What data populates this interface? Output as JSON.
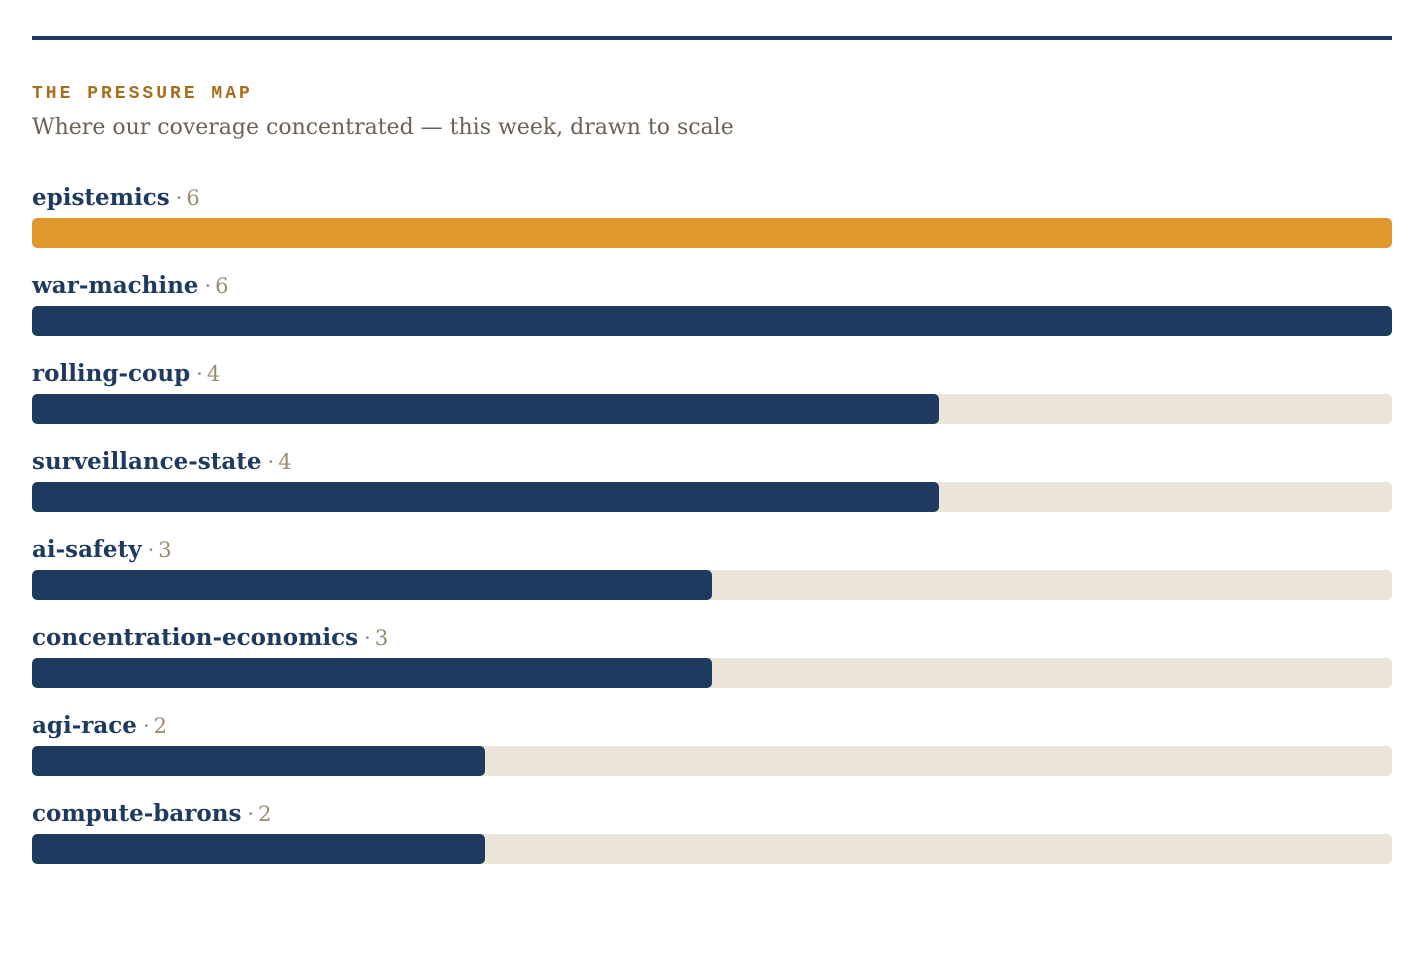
{
  "header": {
    "kicker": "THE PRESSURE MAP",
    "subtitle": "Where our coverage concentrated — this week, drawn to scale"
  },
  "colors": {
    "rule": "#1f3a5f",
    "kicker": "#a66f1d",
    "bar": "#1f3a5f",
    "bar_highlight": "#e0982c",
    "track": "#ece5da",
    "label": "#1f3a5f",
    "count": "#9a8a72"
  },
  "chart_data": {
    "type": "bar",
    "orientation": "horizontal",
    "title": "THE PRESSURE MAP",
    "subtitle": "Where our coverage concentrated — this week, drawn to scale",
    "separator": "·",
    "categories": [
      "epistemics",
      "war-machine",
      "rolling-coup",
      "surveillance-state",
      "ai-safety",
      "concentration-economics",
      "agi-race",
      "compute-barons"
    ],
    "values": [
      6,
      6,
      4,
      4,
      3,
      3,
      2,
      2
    ],
    "highlighted": [
      "epistemics"
    ],
    "xlim": [
      0,
      6
    ],
    "grid": false
  }
}
